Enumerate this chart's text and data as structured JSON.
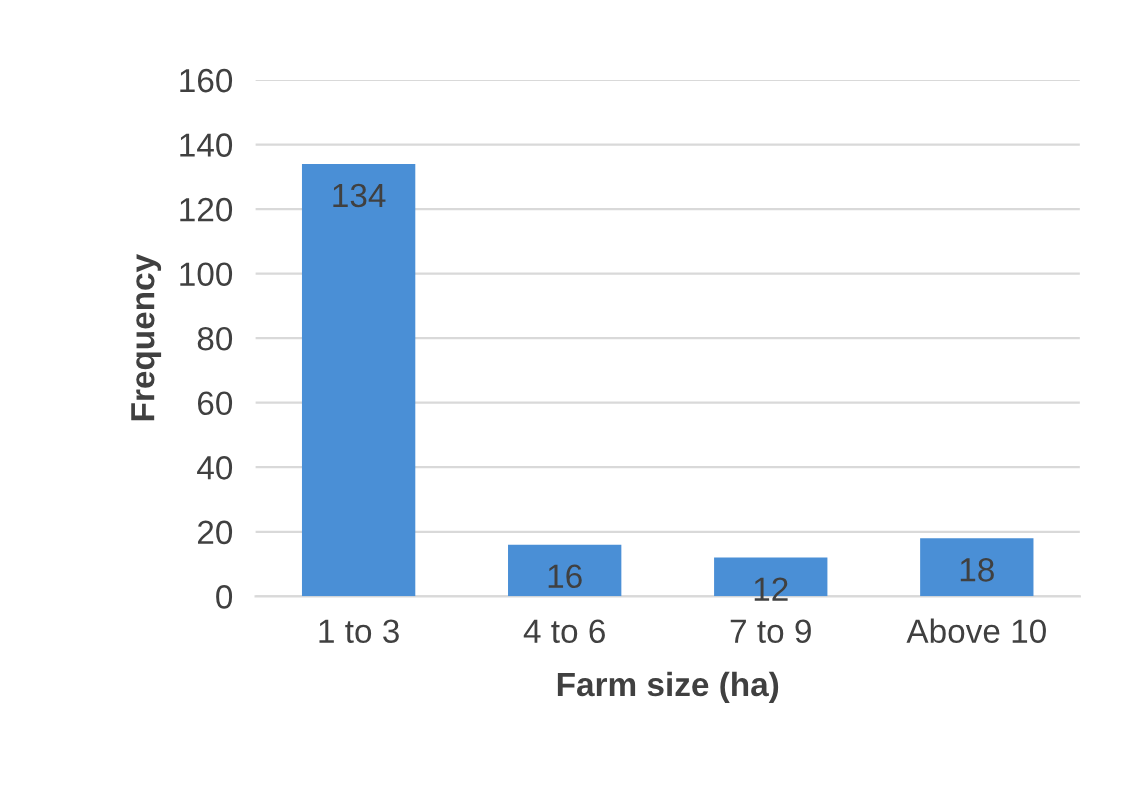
{
  "chart_data": {
    "type": "bar",
    "xlabel": "Farm size (ha)",
    "ylabel": "Frequency",
    "categories": [
      "1 to 3",
      "4 to 6",
      "7 to 9",
      "Above 10"
    ],
    "values": [
      134,
      16,
      12,
      18
    ],
    "color": "#4a8fd6",
    "ylim": [
      0,
      160
    ],
    "yticks": [
      0,
      20,
      40,
      60,
      80,
      100,
      120,
      140,
      160
    ],
    "grid": "y",
    "data_labels": true
  }
}
